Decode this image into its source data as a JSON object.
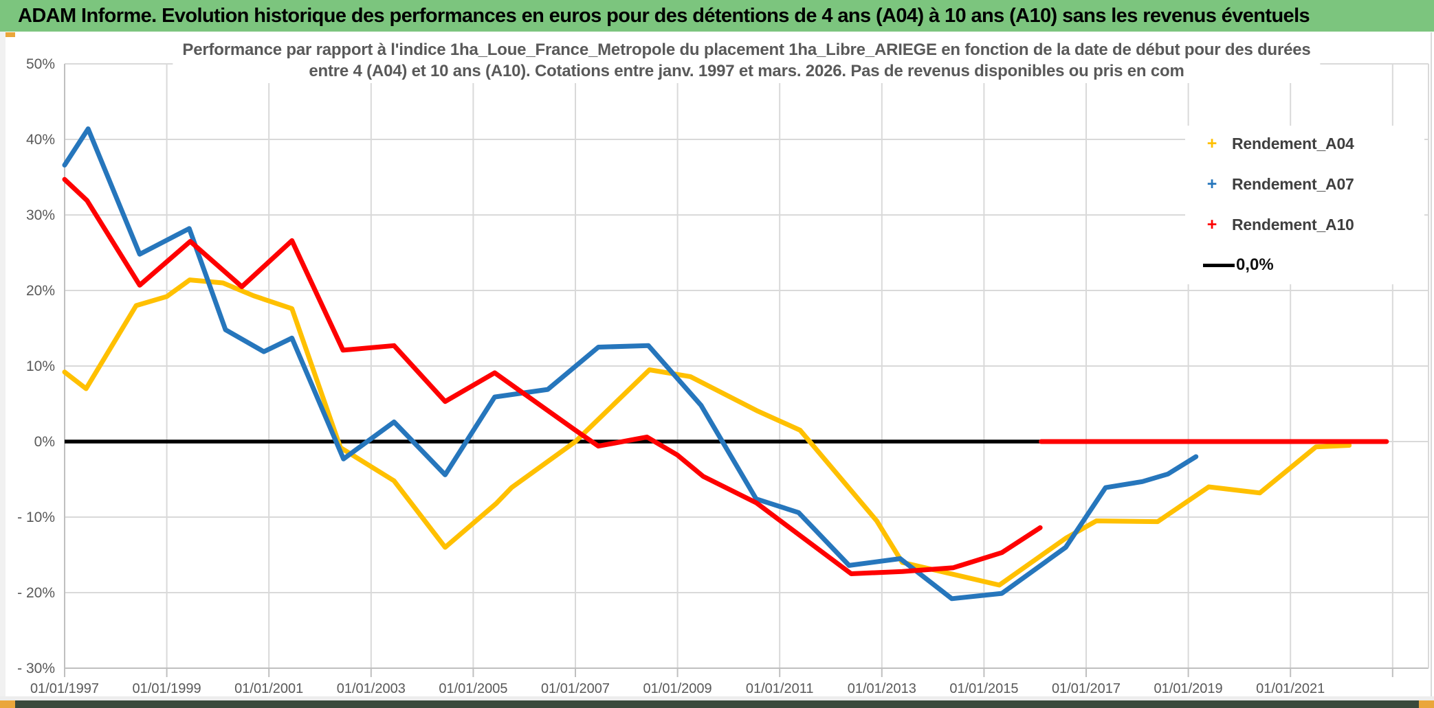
{
  "header": {
    "title": "ADAM Informe. Evolution historique des performances en euros pour des détentions de 4 ans (A04) à 10 ans (A10) sans les revenus éventuels"
  },
  "colors": {
    "header_green": "#7CC57E",
    "accent_amber": "#EAA63B",
    "bottom_band": "#3A4A3C",
    "grid": "#D9D9D9",
    "axis": "#BFBFBF",
    "text_gray": "#595959",
    "series_a04": "#FFC000",
    "series_a07": "#2676BC",
    "series_a10": "#FE0000",
    "zero_black": "#000000"
  },
  "chart_data": {
    "type": "line",
    "title_line1": "Performance par rapport à l'indice 1ha_Loue_France_Metropole  du placement 1ha_Libre_ARIEGE en fonction de la date de début pour des durées",
    "title_line2": "entre 4 (A04) et 10 ans (A10). Cotations entre janv. 1997 et mars. 2026. Pas de revenus disponibles ou pris en com",
    "x_axis": {
      "range": [
        1997.0,
        2023.7
      ],
      "tick_years": [
        1997,
        1999,
        2001,
        2003,
        2005,
        2007,
        2009,
        2011,
        2013,
        2015,
        2017,
        2019,
        2021,
        2023
      ],
      "tick_labels": [
        "01/01/1997",
        "01/01/1999",
        "01/01/2001",
        "01/01/2003",
        "01/01/2005",
        "01/01/2007",
        "01/01/2009",
        "01/01/2011",
        "01/01/2013",
        "01/01/2015",
        "01/01/2017",
        "01/01/2019",
        "01/01/2021",
        ""
      ]
    },
    "y_axis": {
      "range": [
        -30,
        50
      ],
      "unit": "%",
      "ticks": [
        50,
        40,
        30,
        20,
        10,
        0,
        -10,
        -20,
        -30
      ],
      "tick_labels": [
        "50%",
        "40%",
        "30%",
        "20%",
        "10%",
        "0%",
        "- 10%",
        "- 20%",
        "- 30%"
      ],
      "grid": true
    },
    "legend_position": "top-right-inside",
    "series": [
      {
        "name": "Rendement_A04",
        "color": "#FFC000",
        "marker": "+",
        "points": [
          [
            1997.0,
            9.2
          ],
          [
            1997.42,
            7.0
          ],
          [
            1998.4,
            18.0
          ],
          [
            1999.0,
            19.2
          ],
          [
            1999.45,
            21.4
          ],
          [
            2000.1,
            21.0
          ],
          [
            2000.7,
            19.3
          ],
          [
            2001.45,
            17.6
          ],
          [
            2002.4,
            -0.8
          ],
          [
            2003.45,
            -5.2
          ],
          [
            2004.45,
            -14.0
          ],
          [
            2005.45,
            -8.2
          ],
          [
            2005.75,
            -6.1
          ],
          [
            2007.0,
            0.0
          ],
          [
            2008.45,
            9.5
          ],
          [
            2009.25,
            8.6
          ],
          [
            2010.55,
            4.1
          ],
          [
            2011.4,
            1.5
          ],
          [
            2012.9,
            -10.5
          ],
          [
            2013.4,
            -16.0
          ],
          [
            2015.3,
            -19.0
          ],
          [
            2016.6,
            -12.8
          ],
          [
            2017.2,
            -10.5
          ],
          [
            2018.4,
            -10.6
          ],
          [
            2019.4,
            -6.0
          ],
          [
            2020.4,
            -6.8
          ],
          [
            2021.5,
            -0.7
          ],
          [
            2022.15,
            -0.5
          ]
        ]
      },
      {
        "name": "Rendement_A07",
        "color": "#2676BC",
        "marker": "+",
        "points": [
          [
            1997.0,
            36.6
          ],
          [
            1997.46,
            41.4
          ],
          [
            1998.47,
            24.8
          ],
          [
            1999.44,
            28.2
          ],
          [
            2000.15,
            14.8
          ],
          [
            2000.9,
            11.9
          ],
          [
            2001.45,
            13.7
          ],
          [
            2002.46,
            -2.3
          ],
          [
            2003.45,
            2.6
          ],
          [
            2004.45,
            -4.4
          ],
          [
            2005.42,
            5.9
          ],
          [
            2006.46,
            6.9
          ],
          [
            2007.45,
            12.5
          ],
          [
            2008.43,
            12.7
          ],
          [
            2009.46,
            4.8
          ],
          [
            2010.54,
            -7.6
          ],
          [
            2011.37,
            -9.4
          ],
          [
            2012.36,
            -16.4
          ],
          [
            2013.36,
            -15.5
          ],
          [
            2014.37,
            -20.8
          ],
          [
            2015.35,
            -20.1
          ],
          [
            2016.6,
            -14.0
          ],
          [
            2017.38,
            -6.1
          ],
          [
            2018.1,
            -5.3
          ],
          [
            2018.6,
            -4.3
          ],
          [
            2019.15,
            -2.0
          ]
        ]
      },
      {
        "name": "Rendement_A10",
        "color": "#FE0000",
        "marker": "+",
        "points": [
          [
            1997.0,
            34.7
          ],
          [
            1997.44,
            31.9
          ],
          [
            1998.47,
            20.7
          ],
          [
            1999.46,
            26.5
          ],
          [
            2000.47,
            20.5
          ],
          [
            2001.45,
            26.6
          ],
          [
            2002.45,
            12.1
          ],
          [
            2003.45,
            12.7
          ],
          [
            2004.45,
            5.3
          ],
          [
            2005.42,
            9.1
          ],
          [
            2007.0,
            1.5
          ],
          [
            2007.45,
            -0.6
          ],
          [
            2008.4,
            0.6
          ],
          [
            2009.0,
            -1.8
          ],
          [
            2009.5,
            -4.6
          ],
          [
            2010.54,
            -8.1
          ],
          [
            2012.4,
            -17.5
          ],
          [
            2013.4,
            -17.2
          ],
          [
            2014.4,
            -16.7
          ],
          [
            2015.35,
            -14.7
          ],
          [
            2016.1,
            -11.4
          ]
        ],
        "zero_segment": [
          [
            2016.12,
            0.0
          ],
          [
            2022.88,
            0.0
          ]
        ]
      }
    ],
    "zero_line": {
      "label": "0,0%",
      "color": "#000000",
      "points": [
        [
          1997.0,
          0.0
        ],
        [
          2022.88,
          0.0
        ]
      ]
    }
  }
}
